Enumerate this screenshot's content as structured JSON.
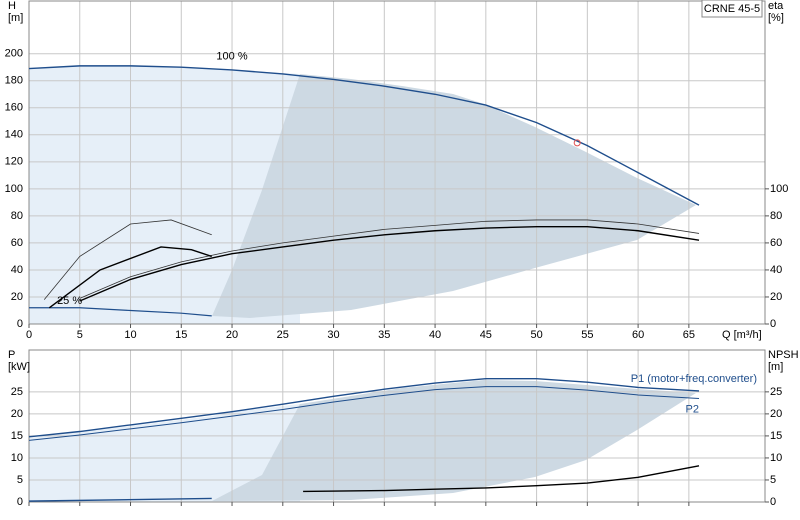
{
  "chart_data": [
    {
      "type": "line",
      "title": "CRNE 45-5",
      "xlabel": "Q [m³/h]",
      "ylabel_lines": [
        "H",
        "[m]"
      ],
      "y2label_lines": [
        "eta",
        "[%]"
      ],
      "xlim": [
        0,
        72.5
      ],
      "xticks": [
        0,
        5,
        10,
        15,
        20,
        25,
        30,
        35,
        40,
        45,
        50,
        55,
        60,
        65
      ],
      "ylim": [
        0,
        239
      ],
      "yticks": [
        0,
        20,
        40,
        60,
        80,
        100,
        120,
        140,
        160,
        180,
        200
      ],
      "y2lim": [
        0,
        239
      ],
      "y2ticks": [
        0,
        20,
        40,
        60,
        80,
        100
      ],
      "grid": true,
      "annotations": [
        {
          "text": "100 %",
          "x": 20,
          "y": 198
        },
        {
          "text": "25 %",
          "x": 4,
          "y": 17
        }
      ],
      "duty_point": {
        "x": 54,
        "y": 134,
        "color": "#e05050"
      },
      "series": [
        {
          "color": "#1f4e8c",
          "width": 1.4,
          "x": [
            0,
            5,
            10,
            15,
            20,
            25,
            30,
            35,
            40,
            45,
            50,
            55,
            60,
            66
          ],
          "values": [
            189,
            191,
            191,
            190,
            188,
            185,
            181,
            176,
            170,
            162,
            149,
            132,
            112,
            88
          ]
        },
        {
          "color": "#1f4e8c",
          "width": 1.2,
          "x": [
            0,
            5,
            10,
            15,
            18
          ],
          "values": [
            12,
            12,
            10,
            8,
            6
          ]
        },
        {
          "color": "#333333",
          "width": 0.8,
          "axis": "y2",
          "x": [
            5,
            10,
            15,
            20,
            25,
            30,
            35,
            40,
            45,
            50,
            55,
            60,
            66
          ],
          "values": [
            19,
            35,
            46,
            54,
            60,
            65,
            70,
            73,
            76,
            77,
            77,
            74,
            67
          ]
        },
        {
          "color": "#000000",
          "width": 1.4,
          "axis": "y2",
          "x": [
            5,
            10,
            15,
            20,
            25,
            30,
            35,
            40,
            45,
            50,
            55,
            60,
            66
          ],
          "values": [
            17,
            33,
            44,
            52,
            57,
            62,
            66,
            69,
            71,
            72,
            72,
            69,
            62
          ]
        },
        {
          "color": "#333333",
          "width": 0.8,
          "axis": "y2",
          "x": [
            1.5,
            5,
            10,
            14,
            18
          ],
          "values": [
            18,
            50,
            74,
            77,
            66
          ]
        },
        {
          "color": "#000000",
          "width": 1.4,
          "axis": "y2",
          "x": [
            2,
            7,
            13,
            16,
            18
          ],
          "values": [
            12,
            40,
            57,
            55,
            50
          ]
        }
      ]
    },
    {
      "type": "line",
      "ylabel_lines": [
        "P",
        "[kW]"
      ],
      "y2label_lines": [
        "NPSH",
        "[m]"
      ],
      "xlim": [
        0,
        72.5
      ],
      "xticks": [
        0,
        5,
        10,
        15,
        20,
        25,
        30,
        35,
        40,
        45,
        50,
        55,
        60,
        65
      ],
      "ylim": [
        0,
        34.5
      ],
      "yticks": [
        0,
        5,
        10,
        15,
        20,
        25
      ],
      "y2lim": [
        0,
        34.5
      ],
      "y2ticks": [
        0,
        5,
        10,
        15,
        20,
        25
      ],
      "grid": true,
      "series": [
        {
          "name": "P1 (motor+freq.converter)",
          "color": "#1f4e8c",
          "width": 1.4,
          "x": [
            0,
            5,
            10,
            15,
            20,
            25,
            30,
            35,
            40,
            45,
            50,
            55,
            60,
            66
          ],
          "values": [
            14.8,
            16,
            17.5,
            19,
            20.5,
            22.2,
            24,
            25.6,
            27,
            28,
            28,
            27.2,
            26,
            25.2
          ]
        },
        {
          "name": "P2",
          "color": "#1f4e8c",
          "width": 1,
          "x": [
            0,
            5,
            10,
            15,
            20,
            25,
            30,
            35,
            40,
            45,
            50,
            55,
            60,
            66
          ],
          "values": [
            14,
            15.2,
            16.6,
            18,
            19.5,
            21,
            22.7,
            24.2,
            25.5,
            26.2,
            26.2,
            25.4,
            24.3,
            23.5
          ]
        },
        {
          "color": "#1f4e8c",
          "width": 1.4,
          "x": [
            0,
            18
          ],
          "values": [
            0.2,
            0.8
          ]
        },
        {
          "color": "#000000",
          "width": 1.4,
          "axis": "y2",
          "x": [
            27,
            35,
            40,
            45,
            50,
            55,
            60,
            66
          ],
          "values": [
            2.4,
            2.6,
            2.9,
            3.2,
            3.7,
            4.3,
            5.6,
            8.2
          ]
        }
      ]
    }
  ]
}
